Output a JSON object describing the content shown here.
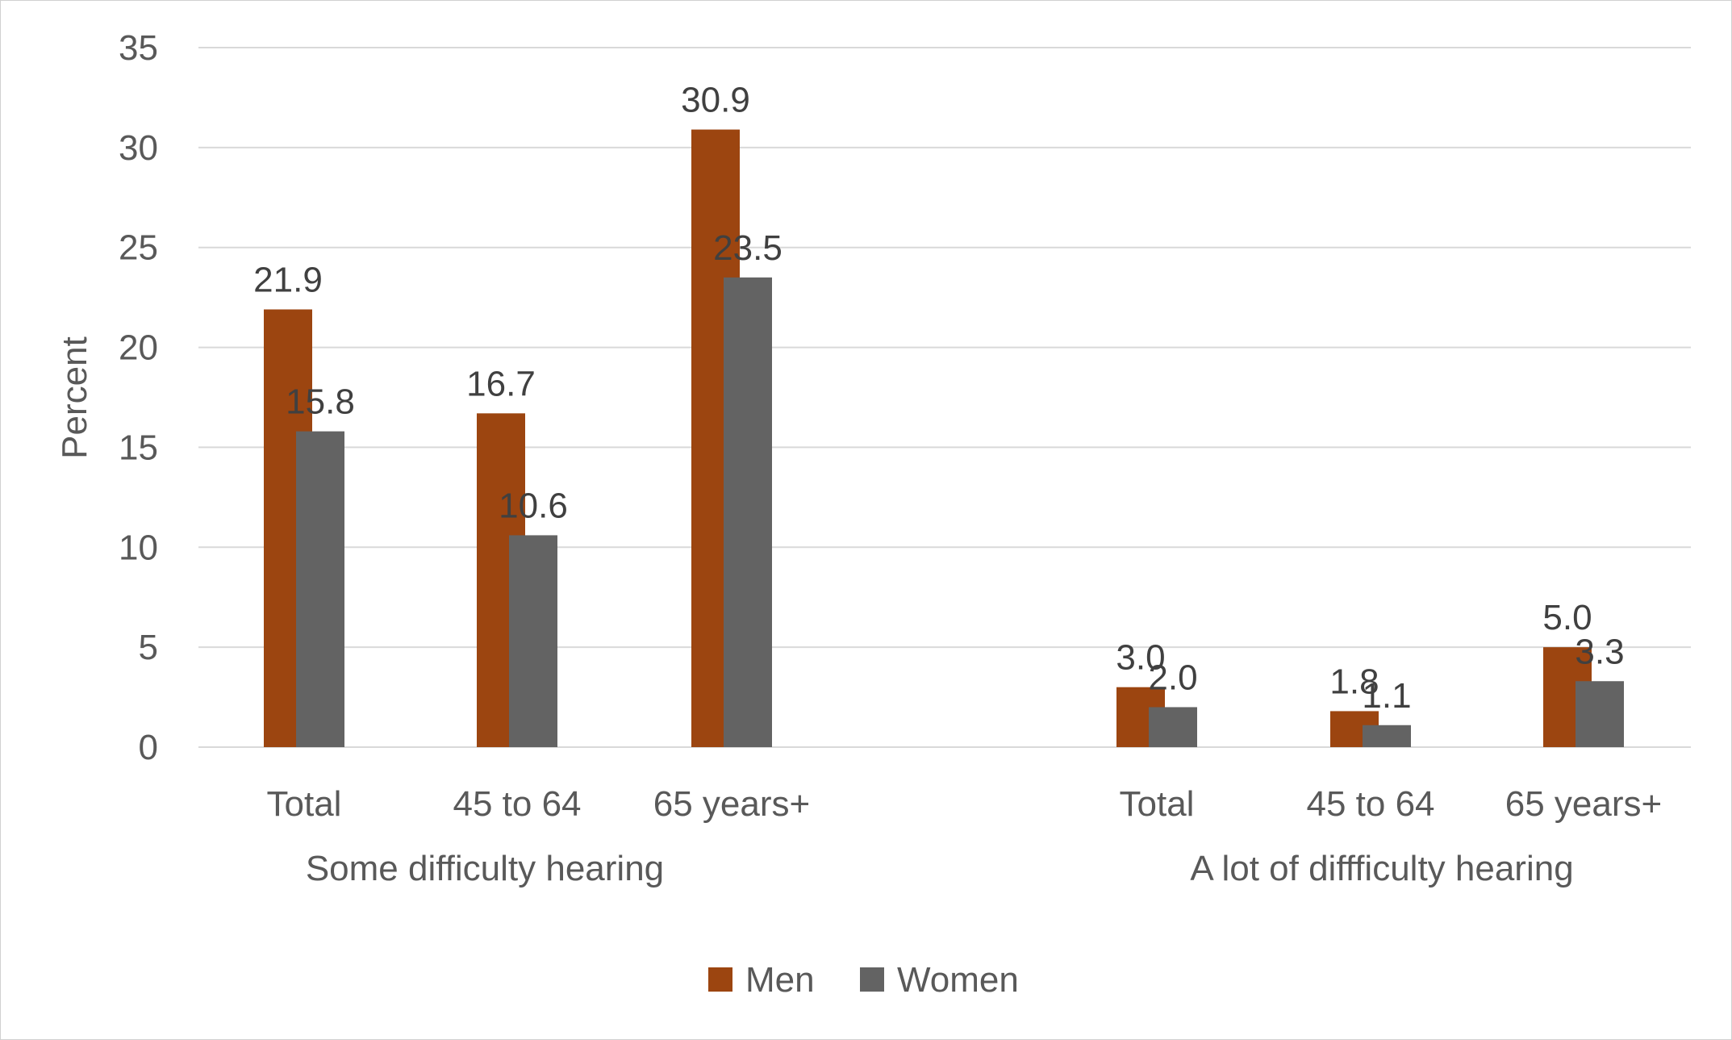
{
  "chart_data": {
    "type": "bar",
    "title": "",
    "xlabel": "",
    "ylabel": "Percent",
    "ylim": [
      0,
      35
    ],
    "yticks": [
      0,
      5,
      10,
      15,
      20,
      25,
      30,
      35
    ],
    "grid": true,
    "legend_position": "bottom",
    "groups": [
      {
        "label": "Some difficulty hearing",
        "categories": [
          "Total",
          "45 to 64",
          "65 years+"
        ]
      },
      {
        "label": "A lot of diffficulty hearing",
        "categories": [
          "Total",
          "45 to 64",
          "65 years+"
        ]
      }
    ],
    "series": [
      {
        "name": "Men",
        "color": "#9C4510",
        "values": [
          21.9,
          16.7,
          30.9,
          3.0,
          1.8,
          5.0
        ],
        "labels": [
          "21.9",
          "16.7",
          "30.9",
          "3.0",
          "1.8",
          "5.0"
        ]
      },
      {
        "name": "Women",
        "color": "#636363",
        "values": [
          15.8,
          10.6,
          23.5,
          2.0,
          1.1,
          3.3
        ],
        "labels": [
          "15.8",
          "10.6",
          "23.5",
          "2.0",
          "1.1",
          "3.3"
        ]
      }
    ]
  }
}
